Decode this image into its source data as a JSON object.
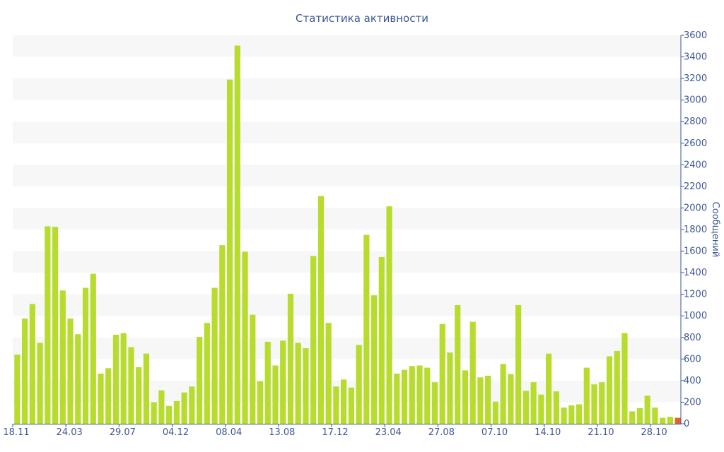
{
  "chart_data": {
    "type": "bar",
    "title": "Статистика активности",
    "xlabel": "",
    "ylabel": "Сообщений",
    "y_axis_position": "right",
    "ylim": [
      0,
      3600
    ],
    "y_ticks": [
      0,
      200,
      400,
      600,
      800,
      1000,
      1200,
      1400,
      1600,
      1800,
      2000,
      2200,
      2400,
      2600,
      2800,
      3000,
      3200,
      3400,
      3600
    ],
    "grid": "alternating horizontal bands",
    "legend": "none",
    "x_tick_labels": [
      {
        "label": "18.11",
        "index": 0
      },
      {
        "label": "24.03",
        "index": 7
      },
      {
        "label": "29.07",
        "index": 14
      },
      {
        "label": "04.12",
        "index": 21
      },
      {
        "label": "08.04",
        "index": 28
      },
      {
        "label": "13.08",
        "index": 35
      },
      {
        "label": "17.12",
        "index": 42
      },
      {
        "label": "23.04",
        "index": 49
      },
      {
        "label": "27.08",
        "index": 56
      },
      {
        "label": "07.10",
        "index": 63
      },
      {
        "label": "14.10",
        "index": 70
      },
      {
        "label": "21.10",
        "index": 77
      },
      {
        "label": "28.10",
        "index": 84
      }
    ],
    "colors": {
      "bar": "#b7dc2d",
      "current_bar": "#e0652b",
      "axis": "#3e5793",
      "band": "#f7f7f7"
    },
    "values": [
      640,
      975,
      1110,
      750,
      1830,
      1825,
      1235,
      975,
      830,
      1260,
      1390,
      465,
      515,
      825,
      840,
      710,
      525,
      650,
      200,
      310,
      165,
      210,
      290,
      345,
      805,
      935,
      1260,
      1655,
      3190,
      3505,
      1595,
      1010,
      395,
      760,
      540,
      770,
      1205,
      750,
      700,
      1555,
      2110,
      935,
      345,
      410,
      335,
      730,
      1750,
      1190,
      1545,
      2015,
      465,
      500,
      535,
      540,
      520,
      385,
      925,
      660,
      1100,
      495,
      945,
      430,
      445,
      205,
      555,
      460,
      1100,
      305,
      385,
      270,
      650,
      300,
      150,
      170,
      180,
      520,
      365,
      385,
      625,
      675,
      840,
      115,
      145,
      260,
      150,
      55,
      65,
      55
    ],
    "highlight_last": true
  }
}
